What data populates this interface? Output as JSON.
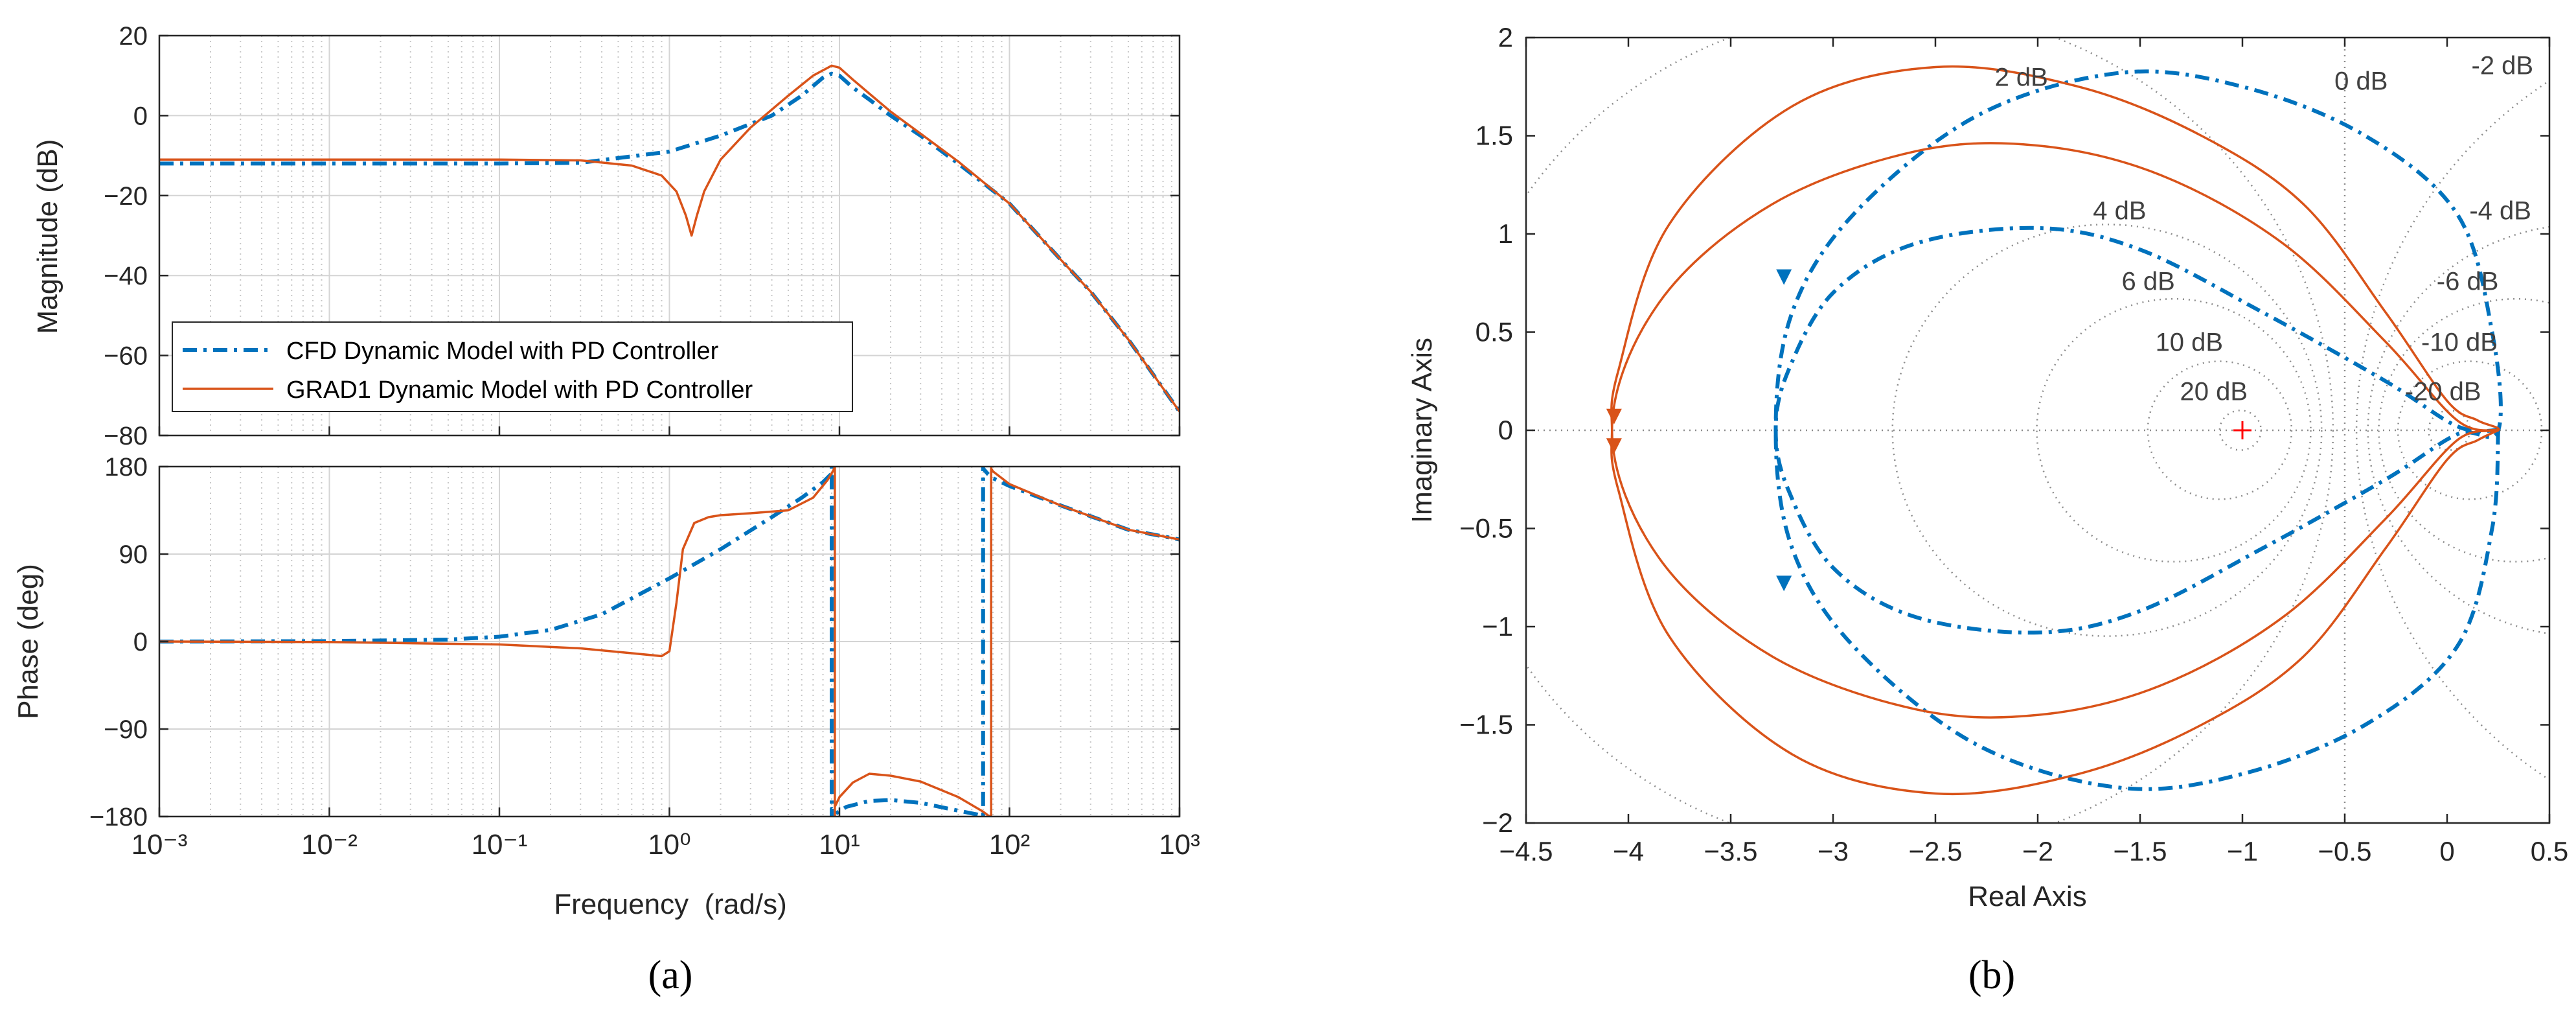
{
  "figure": {
    "panel_a_label": "(a)",
    "panel_b_label": "(b)"
  },
  "chart_data": [
    {
      "type": "line",
      "title": "",
      "subplot": "magnitude",
      "xlabel": "",
      "ylabel": "Magnitude (dB)",
      "xscale": "log",
      "xlim": [
        0.001,
        1000
      ],
      "ylim": [
        -80,
        20
      ],
      "yticks": [
        20,
        0,
        -20,
        -40,
        -60,
        -80
      ],
      "ytick_labels": [
        "20",
        "0",
        "−20",
        "−40",
        "−60",
        "−80"
      ],
      "grid": true,
      "legend": "lower-left",
      "series": [
        {
          "name": "CFD Dynamic Model with PD Controller",
          "color": "#0072BD",
          "style": "dashdot",
          "x": [
            0.001,
            0.01,
            0.1,
            0.3,
            1,
            2,
            4,
            6,
            8,
            9,
            10,
            12,
            15,
            20,
            30,
            50,
            100,
            200,
            300,
            500,
            1000
          ],
          "y": [
            -12,
            -12,
            -12,
            -11.8,
            -9,
            -5,
            0,
            5,
            9.5,
            10.5,
            10,
            7,
            4,
            0,
            -5,
            -12,
            -22,
            -36,
            -44,
            -56,
            -74
          ]
        },
        {
          "name": "GRAD1 Dynamic Model with PD Controller",
          "color": "#D95319",
          "style": "solid",
          "x": [
            0.001,
            0.01,
            0.1,
            0.3,
            0.6,
            0.9,
            1.1,
            1.25,
            1.35,
            1.45,
            1.6,
            2,
            3,
            5,
            7,
            9,
            10,
            12,
            15,
            20,
            30,
            50,
            100,
            200,
            300,
            500,
            1000
          ],
          "y": [
            -11,
            -11,
            -11,
            -11.2,
            -12.5,
            -15,
            -19,
            -25,
            -30,
            -25,
            -19,
            -11,
            -3,
            5,
            10,
            12.5,
            12,
            9,
            5.5,
            1,
            -4.5,
            -11.5,
            -22,
            -36,
            -44,
            -56,
            -74
          ]
        }
      ]
    },
    {
      "type": "line",
      "subplot": "phase",
      "xlabel": "Frequency  (rad/s)",
      "ylabel": "Phase (deg)",
      "xscale": "log",
      "xlim": [
        0.001,
        1000
      ],
      "ylim": [
        -180,
        180
      ],
      "yticks": [
        180,
        90,
        0,
        -90,
        -180
      ],
      "ytick_labels": [
        "180",
        "90",
        "0",
        "−90",
        "−180"
      ],
      "xtick_labels": [
        "10⁻³",
        "10⁻²",
        "10⁻¹",
        "10⁰",
        "10¹",
        "10²",
        "10³"
      ],
      "grid": true,
      "series": [
        {
          "name": "CFD Dynamic Model with PD Controller",
          "color": "#0072BD",
          "style": "dashdot",
          "x": [
            0.001,
            0.01,
            0.05,
            0.1,
            0.2,
            0.4,
            1,
            2,
            4,
            6,
            8,
            8.9,
            9.0,
            9.5,
            11,
            15,
            20,
            30,
            50,
            65,
            70,
            75,
            80,
            100,
            200,
            500,
            1000
          ],
          "y": [
            0,
            0.5,
            2,
            5,
            12,
            28,
            65,
            95,
            128,
            148,
            164,
            172,
            -172,
            -177,
            -170,
            -164,
            -163,
            -166,
            -174,
            -178,
            178,
            172,
            168,
            160,
            140,
            115,
            105
          ]
        },
        {
          "name": "GRAD1 Dynamic Model with PD Controller",
          "color": "#D95319",
          "style": "solid",
          "x": [
            0.001,
            0.01,
            0.1,
            0.3,
            0.6,
            0.9,
            1.0,
            1.1,
            1.2,
            1.4,
            1.7,
            2,
            3,
            5,
            7,
            8.5,
            9.2,
            9.4,
            10,
            12,
            15,
            20,
            30,
            50,
            70,
            75,
            78,
            80,
            100,
            200,
            500,
            1000
          ],
          "y": [
            0,
            -0.5,
            -3,
            -7,
            -12,
            -15,
            -10,
            40,
            95,
            122,
            128,
            130,
            132,
            135,
            148,
            166,
            176,
            -170,
            -160,
            -145,
            -136,
            -138,
            -144,
            -160,
            -175,
            -179,
            178,
            175,
            162,
            140,
            115,
            105
          ]
        }
      ]
    },
    {
      "type": "line",
      "chart_kind": "nyquist",
      "xlabel": "Real Axis",
      "ylabel": "Imaginary Axis",
      "xlim": [
        -4.5,
        0.5
      ],
      "ylim": [
        -2,
        2
      ],
      "xticks": [
        -4.5,
        -4,
        -3.5,
        -3,
        -2.5,
        -2,
        -1.5,
        -1,
        -0.5,
        0,
        0.5
      ],
      "xtick_labels": [
        "−4.5",
        "−4",
        "−3.5",
        "−3",
        "−2.5",
        "−2",
        "−1.5",
        "−1",
        "−0.5",
        "0",
        "0.5"
      ],
      "yticks": [
        2,
        1.5,
        1,
        0.5,
        0,
        -0.5,
        -1,
        -1.5,
        -2
      ],
      "ytick_labels": [
        "2",
        "1.5",
        "1",
        "0.5",
        "0",
        "−0.5",
        "−1",
        "−1.5",
        "−2"
      ],
      "critical_point": [
        -1,
        0
      ],
      "mcircles": [
        {
          "db": 20,
          "label": "20 dB",
          "lx": -1.14,
          "ly": 0.2
        },
        {
          "db": 10,
          "label": "10 dB",
          "lx": -1.26,
          "ly": 0.45
        },
        {
          "db": 6,
          "label": "6 dB",
          "lx": -1.46,
          "ly": 0.76
        },
        {
          "db": 4,
          "label": "4 dB",
          "lx": -1.6,
          "ly": 1.12
        },
        {
          "db": 2,
          "label": "2 dB",
          "lx": -2.08,
          "ly": 1.8
        },
        {
          "db": -2,
          "label": "-2 dB",
          "lx": 0.27,
          "ly": 1.86
        },
        {
          "db": -4,
          "label": "-4 dB",
          "lx": 0.26,
          "ly": 1.12
        },
        {
          "db": -6,
          "label": "-6 dB",
          "lx": 0.1,
          "ly": 0.76
        },
        {
          "db": -10,
          "label": "-10 dB",
          "lx": 0.06,
          "ly": 0.45
        },
        {
          "db": -20,
          "label": "-20 dB",
          "lx": -0.02,
          "ly": 0.2
        }
      ],
      "zero_db_label": {
        "label": "0 dB",
        "lx": -0.42,
        "ly": 1.78
      },
      "series": [
        {
          "name": "CFD Dynamic Model with PD Controller",
          "color": "#0072BD",
          "style": "dashdot",
          "closed": true,
          "points": [
            [
              0.25,
              0
            ],
            [
              0.22,
              -0.5
            ],
            [
              0.05,
              -1.1
            ],
            [
              -0.4,
              -1.5
            ],
            [
              -1,
              -1.75
            ],
            [
              -1.6,
              -1.82
            ],
            [
              -2.3,
              -1.6
            ],
            [
              -2.9,
              -1.1
            ],
            [
              -3.2,
              -0.6
            ],
            [
              -3.28,
              0
            ],
            [
              -3.2,
              0.6
            ],
            [
              -2.9,
              1.1
            ],
            [
              -2.3,
              1.6
            ],
            [
              -1.6,
              1.82
            ],
            [
              -1,
              1.75
            ],
            [
              -0.4,
              1.5
            ],
            [
              0.05,
              1.1
            ],
            [
              0.22,
              0.5
            ],
            [
              0.25,
              0
            ],
            [
              0.05,
              -0.02
            ],
            [
              -0.3,
              -0.25
            ],
            [
              -0.9,
              -0.6
            ],
            [
              -1.5,
              -0.92
            ],
            [
              -2.0,
              -1.03
            ],
            [
              -2.6,
              -0.95
            ],
            [
              -3.0,
              -0.7
            ],
            [
              -3.22,
              -0.3
            ],
            [
              -3.28,
              0
            ],
            [
              -3.22,
              0.3
            ],
            [
              -3.0,
              0.7
            ],
            [
              -2.6,
              0.95
            ],
            [
              -2.0,
              1.03
            ],
            [
              -1.5,
              0.92
            ],
            [
              -0.9,
              0.6
            ],
            [
              -0.3,
              0.25
            ],
            [
              0.05,
              0.02
            ],
            [
              0.25,
              0
            ]
          ]
        },
        {
          "name": "GRAD1 Dynamic Model with PD Controller",
          "color": "#D95319",
          "style": "solid",
          "closed": true,
          "points": [
            [
              0.25,
              0
            ],
            [
              0.15,
              -0.05
            ],
            [
              0.0,
              -0.15
            ],
            [
              -0.3,
              -0.6
            ],
            [
              -0.7,
              -1.15
            ],
            [
              -1.2,
              -1.5
            ],
            [
              -1.8,
              -1.75
            ],
            [
              -2.5,
              -1.85
            ],
            [
              -3.2,
              -1.65
            ],
            [
              -3.8,
              -1.05
            ],
            [
              -4.05,
              -0.3
            ],
            [
              -4.08,
              0
            ],
            [
              -4.05,
              0.3
            ],
            [
              -3.8,
              1.05
            ],
            [
              -3.2,
              1.65
            ],
            [
              -2.5,
              1.85
            ],
            [
              -1.8,
              1.75
            ],
            [
              -1.2,
              1.5
            ],
            [
              -0.7,
              1.15
            ],
            [
              -0.3,
              0.6
            ],
            [
              0.0,
              0.15
            ],
            [
              0.15,
              0.05
            ],
            [
              0.25,
              0
            ],
            [
              0.05,
              -0.05
            ],
            [
              -0.3,
              -0.45
            ],
            [
              -0.8,
              -0.95
            ],
            [
              -1.4,
              -1.3
            ],
            [
              -2.0,
              -1.45
            ],
            [
              -2.6,
              -1.42
            ],
            [
              -3.3,
              -1.15
            ],
            [
              -3.85,
              -0.65
            ],
            [
              -4.08,
              0
            ],
            [
              -3.85,
              0.65
            ],
            [
              -3.3,
              1.15
            ],
            [
              -2.6,
              1.42
            ],
            [
              -2.0,
              1.45
            ],
            [
              -1.4,
              1.3
            ],
            [
              -0.8,
              0.95
            ],
            [
              -0.3,
              0.45
            ],
            [
              0.05,
              0.05
            ],
            [
              0.25,
              0
            ]
          ]
        }
      ]
    }
  ]
}
